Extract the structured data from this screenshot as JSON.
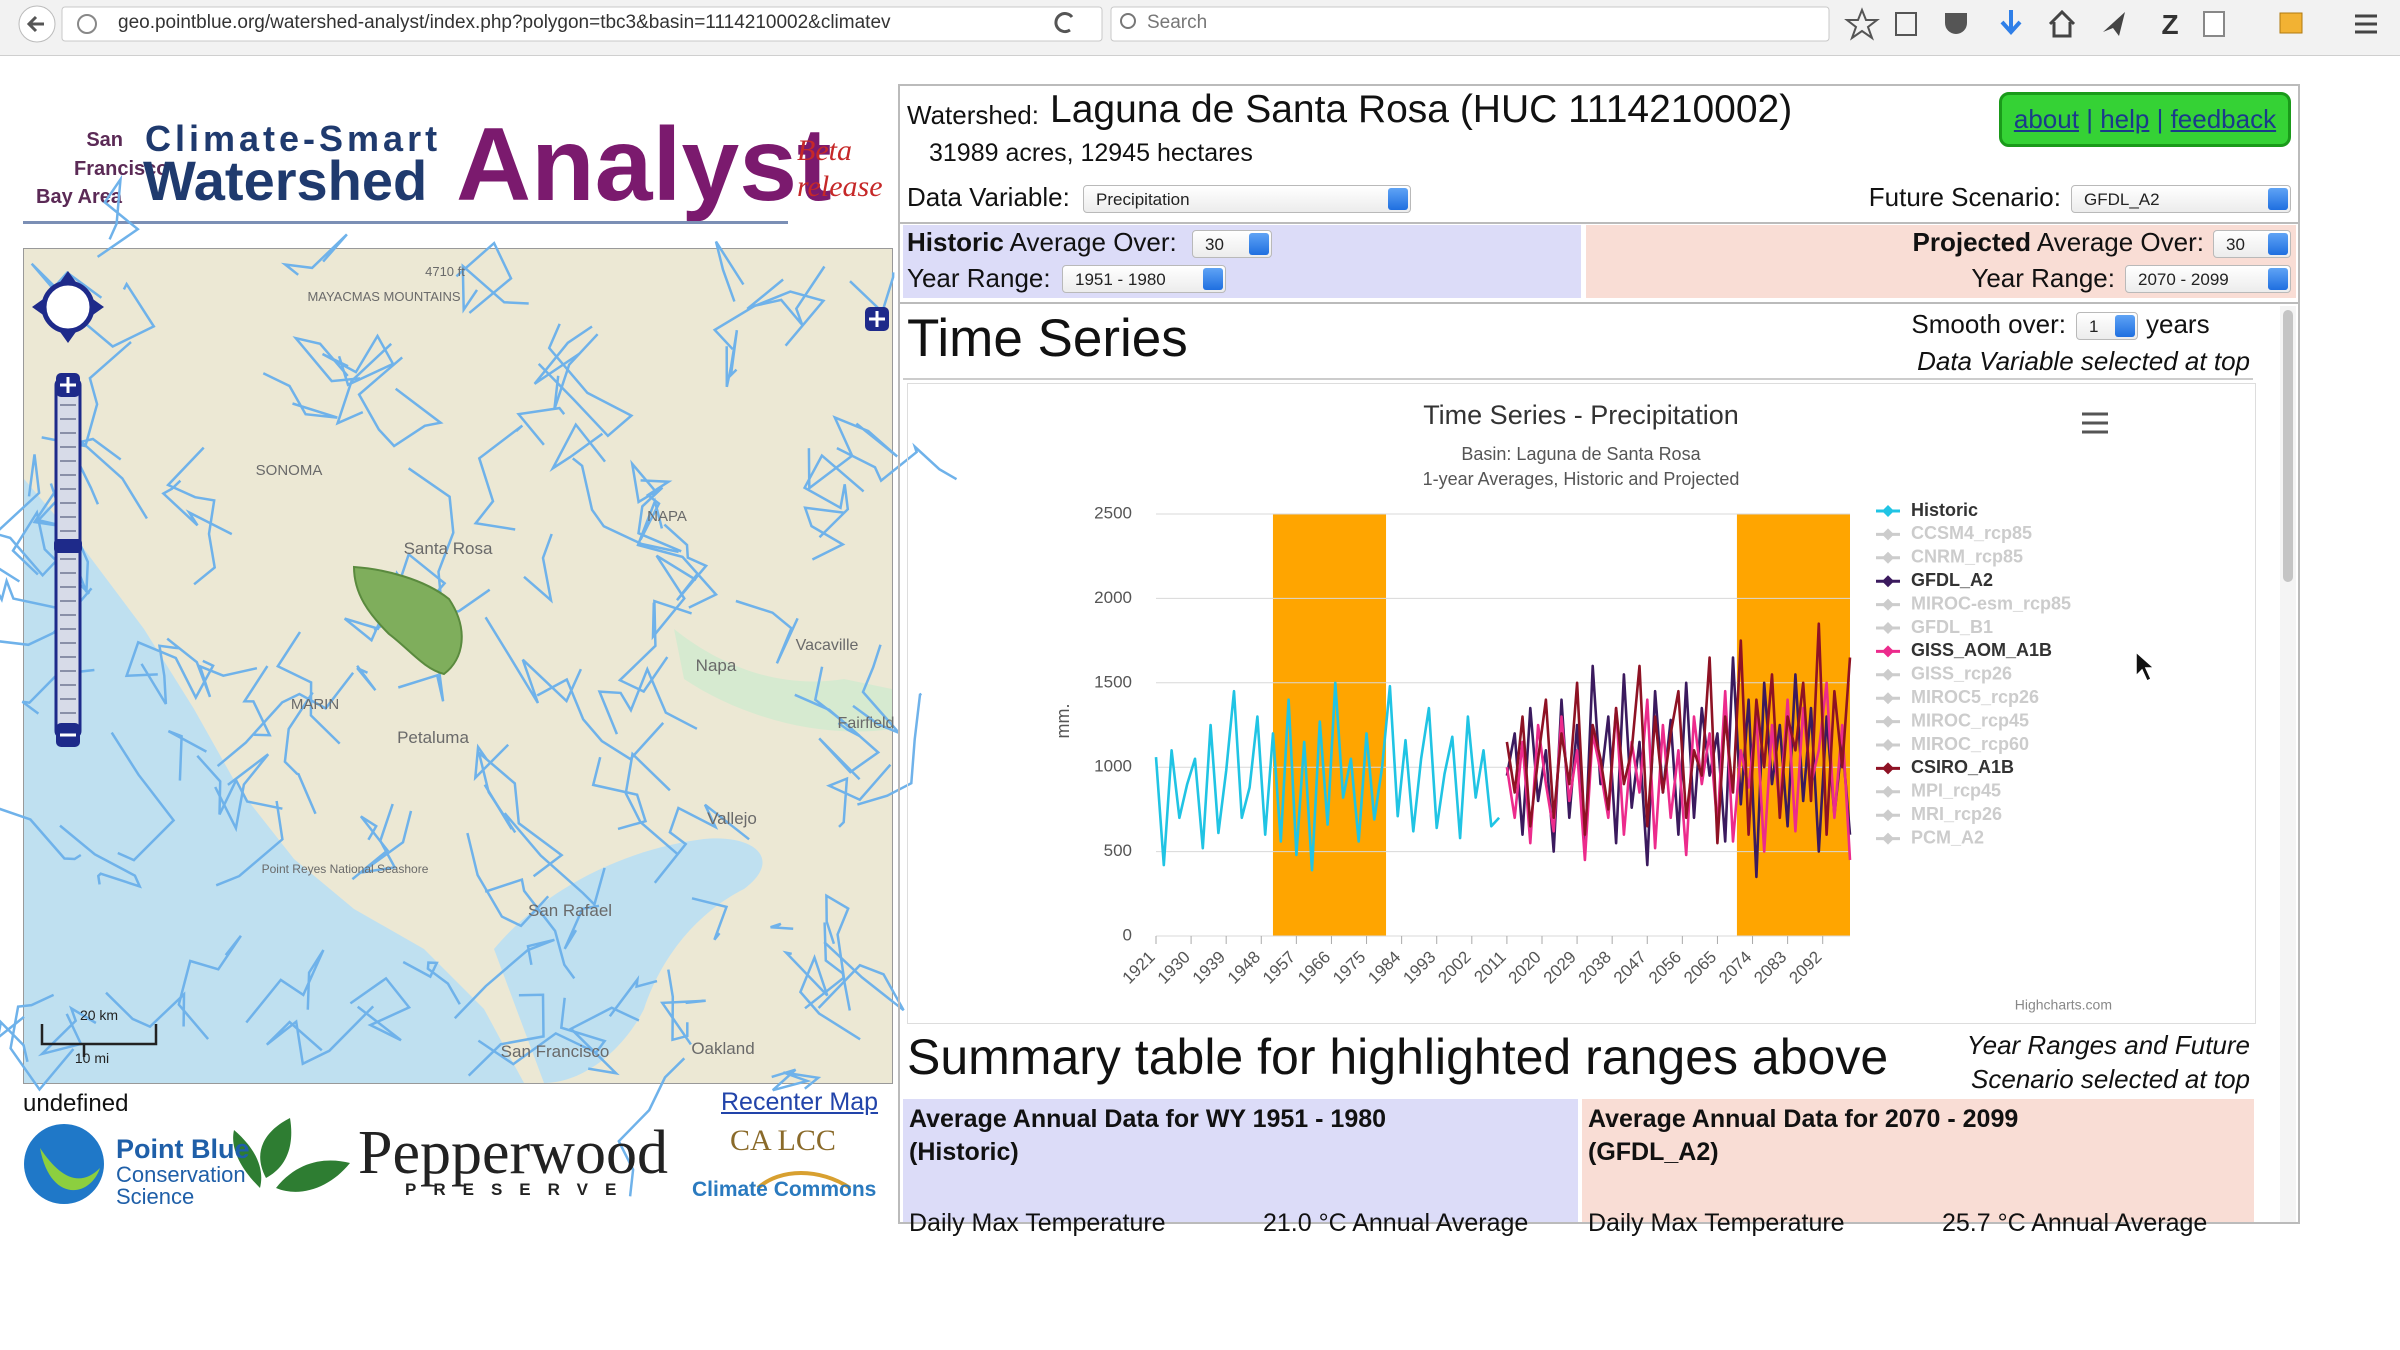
{
  "browser": {
    "url": "geo.pointblue.org/watershed-analyst/index.php?polygon=tbc3&basin=1114210002&climatev",
    "search": "Search"
  },
  "header": {
    "region_1": "San",
    "region_2": "Francisco",
    "region_3": "Bay Area",
    "title_top": "Climate-Smart",
    "title_mid": "Watershed",
    "title_big": "Analyst",
    "badge_1": "Beta",
    "badge_2": "release"
  },
  "map": {
    "labels": [
      "4710 ft",
      "MAYACMAS MOUNTAINS",
      "SONOMA",
      "Santa Rosa",
      "NAPA",
      "Napa",
      "Vacaville",
      "MARIN",
      "Petaluma",
      "Fairfield",
      "Vallejo",
      "Point Reyes National Seashore",
      "San Rafael",
      "San Francisco",
      "Oakland"
    ],
    "scale_km": "20 km",
    "scale_mi": "10 mi",
    "status": "undefined",
    "recenter": "Recenter Map"
  },
  "logos": {
    "pointblue_1": "Point Blue",
    "pointblue_2": "Conservation",
    "pointblue_3": "Science",
    "pepperwood": "Pepperwood",
    "pepperwood_sub": "PRESERVE",
    "calcc": "CA LCC",
    "commons": "Climate Commons"
  },
  "panel": {
    "watershed_label": "Watershed:",
    "watershed_name": "Laguna de Santa Rosa (HUC 1114210002)",
    "area": "31989 acres, 12945 hectares",
    "links": [
      "about",
      "help",
      "feedback"
    ],
    "link_separator": "|",
    "data_variable_label": "Data Variable:",
    "data_variable": "Precipitation",
    "future_label": "Future Scenario:",
    "future": "GFDL_A2",
    "historic_bold": "Historic",
    "average_over": "Average Over:",
    "historic_avg": "30",
    "year_range_label": "Year Range:",
    "historic_range": "1951 - 1980",
    "projected_bold": "Projected",
    "projected_avg": "30",
    "projected_range": "2070 - 2099"
  },
  "time_series": {
    "heading": "Time Series",
    "smooth_label": "Smooth over:",
    "smooth": "1",
    "smooth_unit": "years",
    "note": "Data Variable selected at top"
  },
  "chart_data": {
    "type": "line",
    "title": "Time Series - Precipitation",
    "subtitle_1": "Basin: Laguna de Santa Rosa",
    "subtitle_2": "1-year Averages, Historic and Projected",
    "y_label": "mm.",
    "credits": "Highcharts.com",
    "xlim": [
      1921,
      2099
    ],
    "xticks": [
      1921,
      1930,
      1939,
      1948,
      1957,
      1966,
      1975,
      1984,
      1993,
      2002,
      2011,
      2020,
      2029,
      2038,
      2047,
      2056,
      2065,
      2074,
      2083,
      2092
    ],
    "ylim": [
      0,
      2500
    ],
    "yticks": [
      0,
      500,
      1000,
      1500,
      2000,
      2500
    ],
    "grid": true,
    "legend": "right",
    "plot_bands": [
      {
        "from": 1951,
        "to": 1980,
        "color": "#ffa500"
      },
      {
        "from": 2070,
        "to": 2099,
        "color": "#ffa500"
      }
    ],
    "series": [
      {
        "name": "Historic",
        "color": "#20c4e4",
        "visible": true,
        "x": [
          1921,
          1923,
          1925,
          1927,
          1929,
          1931,
          1933,
          1935,
          1937,
          1939,
          1941,
          1943,
          1945,
          1947,
          1949,
          1951,
          1953,
          1955,
          1957,
          1959,
          1961,
          1963,
          1965,
          1967,
          1969,
          1971,
          1973,
          1975,
          1977,
          1979,
          1981,
          1983,
          1985,
          1987,
          1989,
          1991,
          1993,
          1995,
          1997,
          1999,
          2001,
          2003,
          2005,
          2007,
          2009
        ],
        "values": [
          1060,
          420,
          1100,
          700,
          900,
          1050,
          520,
          1250,
          610,
          980,
          1450,
          700,
          880,
          1300,
          600,
          1200,
          560,
          1400,
          480,
          1150,
          390,
          1270,
          660,
          1500,
          820,
          1050,
          560,
          1200,
          690,
          1000,
          1480,
          710,
          1160,
          620,
          1050,
          1350,
          640,
          960,
          1180,
          580,
          1300,
          820,
          1100,
          650,
          700
        ]
      },
      {
        "name": "CCSM4_rcp85",
        "color": "#cccccc",
        "visible": false
      },
      {
        "name": "CNRM_rcp85",
        "color": "#cccccc",
        "visible": false
      },
      {
        "name": "GFDL_A2",
        "color": "#3b1a5e",
        "visible": true,
        "x": [
          2011,
          2013,
          2015,
          2017,
          2019,
          2021,
          2023,
          2025,
          2027,
          2029,
          2031,
          2033,
          2035,
          2037,
          2039,
          2041,
          2043,
          2045,
          2047,
          2049,
          2051,
          2053,
          2055,
          2057,
          2059,
          2061,
          2063,
          2065,
          2067,
          2069,
          2071,
          2073,
          2075,
          2077,
          2079,
          2081,
          2083,
          2085,
          2087,
          2089,
          2091,
          2093,
          2095,
          2097,
          2099
        ],
        "values": [
          950,
          1200,
          600,
          1350,
          800,
          1100,
          500,
          1400,
          700,
          1250,
          480,
          1600,
          900,
          1300,
          550,
          1550,
          760,
          1150,
          420,
          1450,
          850,
          1280,
          600,
          1500,
          700,
          1350,
          950,
          1200,
          560,
          1650,
          780,
          1400,
          350,
          1500,
          900,
          1250,
          650,
          1550,
          800,
          1350,
          500,
          1300,
          720,
          1150,
          600
        ]
      },
      {
        "name": "MIROC-esm_rcp85",
        "color": "#cccccc",
        "visible": false
      },
      {
        "name": "GFDL_B1",
        "color": "#cccccc",
        "visible": false
      },
      {
        "name": "GISS_AOM_A1B",
        "color": "#ec2b8c",
        "visible": true,
        "x": [
          2011,
          2013,
          2015,
          2017,
          2019,
          2021,
          2023,
          2025,
          2027,
          2029,
          2031,
          2033,
          2035,
          2037,
          2039,
          2041,
          2043,
          2045,
          2047,
          2049,
          2051,
          2053,
          2055,
          2057,
          2059,
          2061,
          2063,
          2065,
          2067,
          2069,
          2071,
          2073,
          2075,
          2077,
          2079,
          2081,
          2083,
          2085,
          2087,
          2089,
          2091,
          2093,
          2095,
          2097,
          2099
        ],
        "values": [
          1000,
          700,
          1150,
          550,
          1250,
          900,
          620,
          1300,
          800,
          1100,
          450,
          1200,
          980,
          700,
          1350,
          600,
          1150,
          850,
          1400,
          520,
          1250,
          700,
          1100,
          480,
          1300,
          900,
          1200,
          650,
          1450,
          560,
          1100,
          880,
          1300,
          500,
          1250,
          750,
          1400,
          620,
          1350,
          900,
          1100,
          1500,
          700,
          1250,
          450
        ]
      },
      {
        "name": "GISS_rcp26",
        "color": "#cccccc",
        "visible": false
      },
      {
        "name": "MIROC5_rcp26",
        "color": "#cccccc",
        "visible": false
      },
      {
        "name": "MIROC_rcp45",
        "color": "#cccccc",
        "visible": false
      },
      {
        "name": "MIROC_rcp60",
        "color": "#cccccc",
        "visible": false
      },
      {
        "name": "CSIRO_A1B",
        "color": "#8e1224",
        "visible": true,
        "x": [
          2011,
          2013,
          2015,
          2017,
          2019,
          2021,
          2023,
          2025,
          2027,
          2029,
          2031,
          2033,
          2035,
          2037,
          2039,
          2041,
          2043,
          2045,
          2047,
          2049,
          2051,
          2053,
          2055,
          2057,
          2059,
          2061,
          2063,
          2065,
          2067,
          2069,
          2071,
          2073,
          2075,
          2077,
          2079,
          2081,
          2083,
          2085,
          2087,
          2089,
          2091,
          2093,
          2095,
          2097,
          2099
        ],
        "values": [
          1150,
          850,
          1300,
          650,
          1050,
          1400,
          700,
          1200,
          900,
          1500,
          600,
          1250,
          1050,
          750,
          1350,
          900,
          1100,
          1600,
          650,
          1300,
          850,
          1200,
          1450,
          700,
          1100,
          950,
          1650,
          550,
          1300,
          850,
          1750,
          600,
          1400,
          1000,
          1550,
          700,
          1300,
          1100,
          1500,
          800,
          1850,
          600,
          1450,
          1000,
          1650
        ]
      },
      {
        "name": "MPI_rcp45",
        "color": "#cccccc",
        "visible": false
      },
      {
        "name": "MRI_rcp26",
        "color": "#cccccc",
        "visible": false
      },
      {
        "name": "PCM_A2",
        "color": "#cccccc",
        "visible": false
      }
    ]
  },
  "summary": {
    "heading": "Summary table for highlighted ranges above",
    "note_1": "Year Ranges and Future",
    "note_2": "Scenario selected at top",
    "historic_head_1": "Average Annual Data for WY 1951 - 1980",
    "historic_head_2": "(Historic)",
    "projected_head_1": "Average Annual Data for 2070 - 2099",
    "projected_head_2": "(GFDL_A2)",
    "row_label": "Daily Max Temperature",
    "historic_value": "21.0 °C Annual Average",
    "projected_value": "25.7 °C Annual Average"
  }
}
